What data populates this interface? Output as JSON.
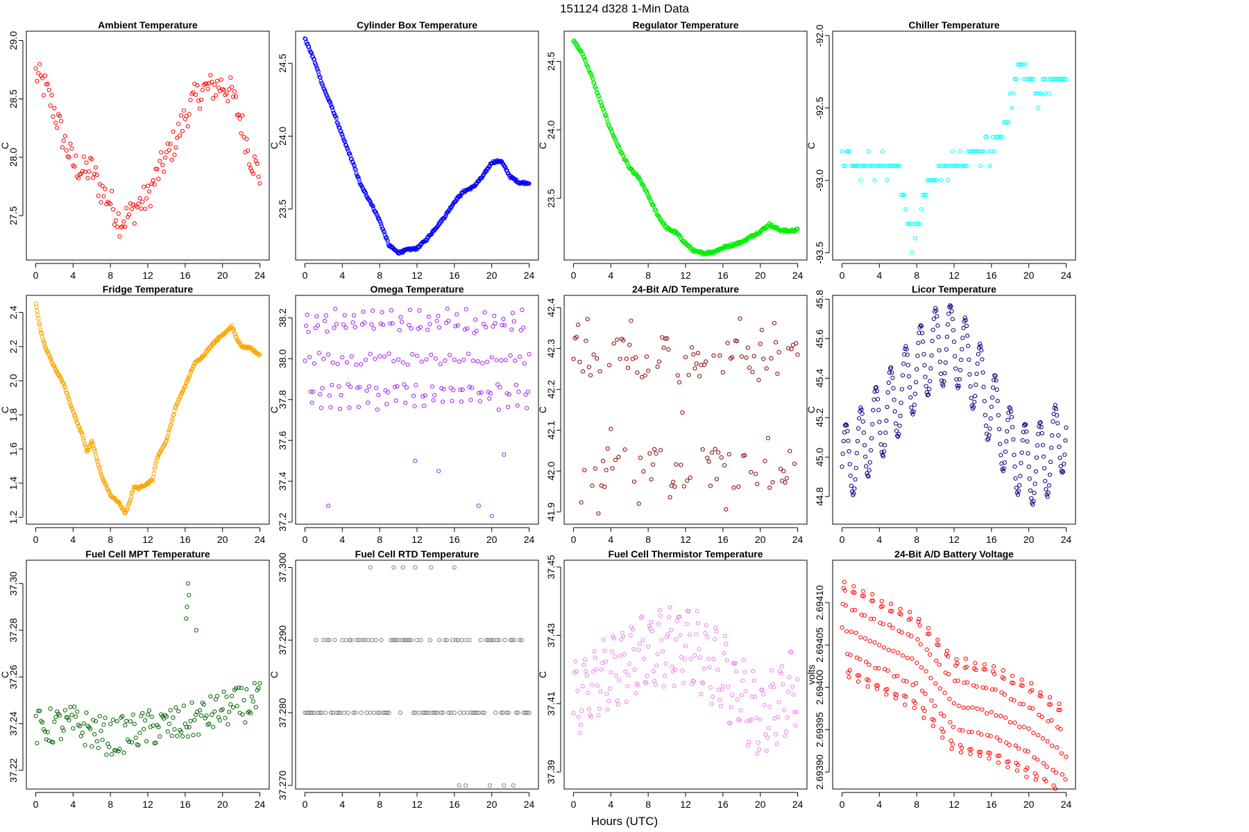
{
  "figure": {
    "title": "151124   d328   1-Min Data",
    "xlabel": "Hours (UTC)"
  },
  "chart_data": [
    {
      "type": "scatter",
      "title": "Ambient Temperature",
      "ylabel": "C",
      "color": "#ff0000",
      "xlim": [
        -1,
        25
      ],
      "ylim": [
        27.12,
        29.08
      ],
      "xticks": [
        0,
        4,
        8,
        12,
        16,
        20,
        24
      ],
      "xtick_labels": [
        "0",
        "4",
        "8",
        "12",
        "16",
        "20",
        "24"
      ],
      "yticks": [
        27.5,
        28.0,
        28.5,
        29.0
      ],
      "ytick_labels": [
        "27.5",
        "28.0",
        "28.5",
        "29.0"
      ],
      "points": [
        [
          0,
          28.72
        ],
        [
          1,
          28.6
        ],
        [
          2,
          28.4
        ],
        [
          3,
          28.15
        ],
        [
          4,
          27.95
        ],
        [
          5,
          27.88
        ],
        [
          6,
          27.9
        ],
        [
          7,
          27.72
        ],
        [
          8,
          27.62
        ],
        [
          9,
          27.45
        ],
        [
          10,
          27.5
        ],
        [
          11,
          27.6
        ],
        [
          12,
          27.65
        ],
        [
          13,
          27.85
        ],
        [
          14,
          28.0
        ],
        [
          15,
          28.15
        ],
        [
          16,
          28.35
        ],
        [
          17,
          28.5
        ],
        [
          18,
          28.58
        ],
        [
          19,
          28.6
        ],
        [
          20,
          28.62
        ],
        [
          21,
          28.55
        ],
        [
          22,
          28.3
        ],
        [
          23,
          28.0
        ],
        [
          24,
          27.85
        ]
      ],
      "noise": 0.13,
      "density": 7
    },
    {
      "type": "scatter",
      "title": "Cylinder Box Temperature",
      "ylabel": "C",
      "color": "#0000ff",
      "xlim": [
        -1,
        25
      ],
      "ylim": [
        23.15,
        24.72
      ],
      "xticks": [
        0,
        4,
        8,
        12,
        16,
        20,
        24
      ],
      "xtick_labels": [
        "0",
        "4",
        "8",
        "12",
        "16",
        "20",
        "24"
      ],
      "yticks": [
        23.5,
        24.0,
        24.5
      ],
      "ytick_labels": [
        "23.5",
        "24.0",
        "24.5"
      ],
      "points": [
        [
          0,
          24.67
        ],
        [
          1,
          24.52
        ],
        [
          2,
          24.33
        ],
        [
          3,
          24.18
        ],
        [
          4,
          24.0
        ],
        [
          5,
          23.84
        ],
        [
          6,
          23.66
        ],
        [
          7,
          23.55
        ],
        [
          8,
          23.42
        ],
        [
          9,
          23.25
        ],
        [
          10,
          23.2
        ],
        [
          11,
          23.22
        ],
        [
          12,
          23.23
        ],
        [
          13,
          23.29
        ],
        [
          14,
          23.37
        ],
        [
          15,
          23.45
        ],
        [
          16,
          23.55
        ],
        [
          17,
          23.62
        ],
        [
          18,
          23.65
        ],
        [
          19,
          23.72
        ],
        [
          20,
          23.82
        ],
        [
          21,
          23.83
        ],
        [
          22,
          23.72
        ],
        [
          23,
          23.68
        ],
        [
          24,
          23.68
        ]
      ],
      "noise": 0.008,
      "density": 14
    },
    {
      "type": "scatter",
      "title": "Regulator Temperature",
      "ylabel": "C",
      "color": "#00ee00",
      "xlim": [
        -1,
        25
      ],
      "ylim": [
        23.05,
        24.72
      ],
      "xticks": [
        0,
        4,
        8,
        12,
        16,
        20,
        24
      ],
      "xtick_labels": [
        "0",
        "4",
        "8",
        "12",
        "16",
        "20",
        "24"
      ],
      "yticks": [
        23.5,
        24.0,
        24.5
      ],
      "ytick_labels": [
        "23.5",
        "24.0",
        "24.5"
      ],
      "points": [
        [
          0,
          24.65
        ],
        [
          1,
          24.55
        ],
        [
          2,
          24.38
        ],
        [
          3,
          24.18
        ],
        [
          4,
          24.0
        ],
        [
          5,
          23.85
        ],
        [
          6,
          23.72
        ],
        [
          7,
          23.65
        ],
        [
          8,
          23.52
        ],
        [
          9,
          23.38
        ],
        [
          10,
          23.28
        ],
        [
          11,
          23.25
        ],
        [
          12,
          23.17
        ],
        [
          13,
          23.11
        ],
        [
          14,
          23.1
        ],
        [
          15,
          23.11
        ],
        [
          16,
          23.14
        ],
        [
          17,
          23.16
        ],
        [
          18,
          23.18
        ],
        [
          19,
          23.22
        ],
        [
          20,
          23.26
        ],
        [
          21,
          23.31
        ],
        [
          22,
          23.27
        ],
        [
          23,
          23.26
        ],
        [
          24,
          23.27
        ]
      ],
      "noise": 0.01,
      "density": 14
    },
    {
      "type": "scatter",
      "title": "Chiller Temperature",
      "ylabel": "C",
      "color": "#00ffff",
      "xlim": [
        -1,
        25
      ],
      "ylim": [
        -93.55,
        -91.97
      ],
      "xticks": [
        0,
        4,
        8,
        12,
        16,
        20,
        24
      ],
      "xtick_labels": [
        "0",
        "4",
        "8",
        "12",
        "16",
        "20",
        "24"
      ],
      "yticks": [
        -93.5,
        -93.0,
        -92.5,
        -92.0
      ],
      "ytick_labels": [
        "-93.5",
        "-93.0",
        "-92.5",
        "-92.0"
      ],
      "points": [
        [
          0,
          -92.8
        ],
        [
          1,
          -92.9
        ],
        [
          3,
          -92.9
        ],
        [
          6,
          -92.9
        ],
        [
          6.5,
          -93.1
        ],
        [
          7,
          -93.2
        ],
        [
          7.5,
          -93.4
        ],
        [
          8,
          -93.3
        ],
        [
          8.5,
          -93.2
        ],
        [
          9,
          -93.1
        ],
        [
          10,
          -93.0
        ],
        [
          11,
          -92.9
        ],
        [
          12,
          -92.9
        ],
        [
          13,
          -92.9
        ],
        [
          14,
          -92.8
        ],
        [
          15,
          -92.8
        ],
        [
          16,
          -92.8
        ],
        [
          17,
          -92.7
        ],
        [
          18,
          -92.5
        ],
        [
          19,
          -92.2
        ],
        [
          20,
          -92.3
        ],
        [
          21,
          -92.4
        ],
        [
          22,
          -92.3
        ],
        [
          24,
          -92.3
        ]
      ],
      "noise": 0.06,
      "density": 6,
      "quant": 0.1
    },
    {
      "type": "scatter",
      "title": "Fridge Temperature",
      "ylabel": "C",
      "color": "#ffa500",
      "xlim": [
        -1,
        25
      ],
      "ylim": [
        1.16,
        2.5
      ],
      "xticks": [
        0,
        4,
        8,
        12,
        16,
        20,
        24
      ],
      "xtick_labels": [
        "0",
        "4",
        "8",
        "12",
        "16",
        "20",
        "24"
      ],
      "yticks": [
        1.2,
        1.4,
        1.6,
        1.8,
        2.0,
        2.2,
        2.4
      ],
      "ytick_labels": [
        "1.2",
        "1.4",
        "1.6",
        "1.8",
        "2.0",
        "2.2",
        "2.4"
      ],
      "points": [
        [
          0,
          2.45
        ],
        [
          0.5,
          2.3
        ],
        [
          1,
          2.2
        ],
        [
          2,
          2.08
        ],
        [
          3,
          1.98
        ],
        [
          4,
          1.82
        ],
        [
          5,
          1.68
        ],
        [
          5.5,
          1.58
        ],
        [
          6,
          1.65
        ],
        [
          6.5,
          1.55
        ],
        [
          7,
          1.45
        ],
        [
          8,
          1.33
        ],
        [
          9,
          1.28
        ],
        [
          9.6,
          1.22
        ],
        [
          10,
          1.28
        ],
        [
          10.5,
          1.38
        ],
        [
          11,
          1.37
        ],
        [
          12,
          1.4
        ],
        [
          12.5,
          1.42
        ],
        [
          13,
          1.55
        ],
        [
          14,
          1.65
        ],
        [
          15,
          1.85
        ],
        [
          16,
          1.97
        ],
        [
          17,
          2.1
        ],
        [
          18,
          2.15
        ],
        [
          19,
          2.22
        ],
        [
          20,
          2.27
        ],
        [
          21,
          2.32
        ],
        [
          21.5,
          2.25
        ],
        [
          22,
          2.2
        ],
        [
          23,
          2.19
        ],
        [
          24,
          2.15
        ]
      ],
      "noise": 0.006,
      "density": 14
    },
    {
      "type": "scatter",
      "title": "Omega Temperature",
      "ylabel": "C",
      "color": "#a020f0",
      "xlim": [
        -1,
        25
      ],
      "ylim": [
        37.19,
        38.31
      ],
      "xticks": [
        0,
        4,
        8,
        12,
        16,
        20,
        24
      ],
      "xtick_labels": [
        "0",
        "4",
        "8",
        "12",
        "16",
        "20",
        "24"
      ],
      "yticks": [
        37.2,
        37.4,
        37.6,
        37.8,
        38.0,
        38.2
      ],
      "ytick_labels": [
        "37.2",
        "37.4",
        "37.6",
        "37.8",
        "38.0",
        "38.2"
      ],
      "points": [
        [
          0,
          38.0
        ],
        [
          24,
          38.0
        ]
      ],
      "osc": {
        "amp": 0.22,
        "period": 1.0
      },
      "noise": 0.03,
      "density": 8,
      "extra": [
        [
          2.5,
          37.28
        ],
        [
          11.8,
          37.5
        ],
        [
          14.3,
          37.45
        ],
        [
          18.6,
          37.28
        ],
        [
          20,
          37.23
        ],
        [
          21.3,
          37.53
        ]
      ]
    },
    {
      "type": "scatter",
      "title": "24-Bit A/D Temperature",
      "ylabel": "C",
      "color": "#8b0000",
      "xlim": [
        -1,
        25
      ],
      "ylim": [
        41.87,
        42.43
      ],
      "xticks": [
        0,
        4,
        8,
        12,
        16,
        20,
        24
      ],
      "xtick_labels": [
        "0",
        "4",
        "8",
        "12",
        "16",
        "20",
        "24"
      ],
      "yticks": [
        41.9,
        42.0,
        42.1,
        42.2,
        42.3,
        42.4
      ],
      "ytick_labels": [
        "41.9",
        "42.0",
        "42.1",
        "42.2",
        "42.3",
        "42.4"
      ],
      "points": [
        [
          0,
          42.15
        ],
        [
          24,
          42.15
        ]
      ],
      "bands": [
        42.28,
        42.01
      ],
      "noise": 0.05,
      "density": 6
    },
    {
      "type": "scatter",
      "title": "Licor Temperature",
      "ylabel": "C",
      "color": "#000080",
      "xlim": [
        -1,
        25
      ],
      "ylim": [
        44.66,
        45.82
      ],
      "xticks": [
        0,
        4,
        8,
        12,
        16,
        20,
        24
      ],
      "xtick_labels": [
        "0",
        "4",
        "8",
        "12",
        "16",
        "20",
        "24"
      ],
      "yticks": [
        44.8,
        45.0,
        45.2,
        45.4,
        45.6,
        45.8
      ],
      "ytick_labels": [
        "44.8",
        "45.0",
        "45.2",
        "45.4",
        "45.6",
        "45.8"
      ],
      "points": [
        [
          0,
          44.95
        ],
        [
          2,
          45.05
        ],
        [
          4,
          45.18
        ],
        [
          6,
          45.3
        ],
        [
          8,
          45.45
        ],
        [
          10,
          45.55
        ],
        [
          12,
          45.58
        ],
        [
          14,
          45.45
        ],
        [
          16,
          45.25
        ],
        [
          18,
          45.05
        ],
        [
          20,
          44.95
        ],
        [
          22,
          45.0
        ],
        [
          24,
          45.15
        ]
      ],
      "osc": {
        "amp": 0.2,
        "period": 1.6
      },
      "noise": 0.005,
      "density": 12
    },
    {
      "type": "scatter",
      "title": "Fuel Cell MPT Temperature",
      "ylabel": "C",
      "color": "#006400",
      "xlim": [
        -1,
        25
      ],
      "ylim": [
        37.212,
        37.31
      ],
      "xticks": [
        0,
        4,
        8,
        12,
        16,
        20,
        24
      ],
      "xtick_labels": [
        "0",
        "4",
        "8",
        "12",
        "16",
        "20",
        "24"
      ],
      "yticks": [
        37.22,
        37.24,
        37.26,
        37.28,
        37.3
      ],
      "ytick_labels": [
        "37.22",
        "37.24",
        "37.26",
        "37.28",
        "37.30"
      ],
      "points": [
        [
          0,
          37.238
        ],
        [
          4,
          37.24
        ],
        [
          8,
          37.234
        ],
        [
          12,
          37.238
        ],
        [
          16,
          37.24
        ],
        [
          20,
          37.246
        ],
        [
          24,
          37.25
        ]
      ],
      "noise": 0.008,
      "density": 7,
      "extra": [
        [
          16.2,
          37.29
        ],
        [
          16.3,
          37.3
        ],
        [
          16.4,
          37.295
        ],
        [
          17.2,
          37.28
        ],
        [
          16.1,
          37.285
        ]
      ]
    },
    {
      "type": "scatter",
      "title": "Fuel Cell RTD Temperature",
      "ylabel": "C",
      "color": "#808080",
      "xlim": [
        -1,
        25
      ],
      "ylim": [
        37.2695,
        37.301
      ],
      "xticks": [
        0,
        4,
        8,
        12,
        16,
        20,
        24
      ],
      "xtick_labels": [
        "0",
        "4",
        "8",
        "12",
        "16",
        "20",
        "24"
      ],
      "yticks": [
        37.27,
        37.28,
        37.29,
        37.3
      ],
      "ytick_labels": [
        "37.270",
        "37.280",
        "37.290",
        "37.300"
      ],
      "points": [
        [
          0,
          37.285
        ],
        [
          24,
          37.285
        ]
      ],
      "levels": [
        37.29,
        37.28
      ],
      "noise": 0,
      "density": 5,
      "extra": [
        [
          7,
          37.3
        ],
        [
          9.5,
          37.3
        ],
        [
          10.5,
          37.3
        ],
        [
          11.8,
          37.3
        ],
        [
          13.5,
          37.3
        ],
        [
          16,
          37.3
        ],
        [
          16.5,
          37.27
        ],
        [
          17.2,
          37.27
        ],
        [
          19.8,
          37.27
        ],
        [
          21.3,
          37.27
        ],
        [
          22.3,
          37.27
        ]
      ]
    },
    {
      "type": "scatter",
      "title": "Fuel Cell Thermistor Temperature",
      "ylabel": "C",
      "color": "#ee82ee",
      "xlim": [
        -1,
        25
      ],
      "ylim": [
        37.385,
        37.452
      ],
      "xticks": [
        0,
        4,
        8,
        12,
        16,
        20,
        24
      ],
      "xtick_labels": [
        "0",
        "4",
        "8",
        "12",
        "16",
        "20",
        "24"
      ],
      "yticks": [
        37.39,
        37.41,
        37.43,
        37.45
      ],
      "ytick_labels": [
        "37.39",
        "37.41",
        "37.43",
        "37.45"
      ],
      "points": [
        [
          0,
          37.41
        ],
        [
          4,
          37.42
        ],
        [
          8,
          37.425
        ],
        [
          12,
          37.428
        ],
        [
          16,
          37.418
        ],
        [
          20,
          37.405
        ],
        [
          24,
          37.415
        ]
      ],
      "osc": {
        "amp": 0.01,
        "period": 1.0
      },
      "noise": 0.003,
      "density": 9
    },
    {
      "type": "scatter",
      "title": "24-Bit A/D Battery Voltage",
      "ylabel": "volts",
      "color": "#ff0000",
      "xlim": [
        -1,
        25
      ],
      "ylim": [
        2.69388,
        2.69415
      ],
      "xticks": [
        0,
        4,
        8,
        12,
        16,
        20,
        24
      ],
      "xtick_labels": [
        "0",
        "4",
        "8",
        "12",
        "16",
        "20",
        "24"
      ],
      "yticks": [
        2.6939,
        2.69395,
        2.694,
        2.69405,
        2.6941
      ],
      "ytick_labels": [
        "2.69390",
        "2.69395",
        "2.69400",
        "2.69405",
        "2.69410"
      ],
      "points": [
        [
          0,
          2.69407
        ],
        [
          4,
          2.69405
        ],
        [
          8,
          2.69403
        ],
        [
          12,
          2.69398
        ],
        [
          16,
          2.69397
        ],
        [
          20,
          2.69395
        ],
        [
          24,
          2.69392
        ]
      ],
      "osc": {
        "amp": 5.5e-05,
        "period": 1.0
      },
      "noise": 2e-06,
      "density": 12
    }
  ]
}
